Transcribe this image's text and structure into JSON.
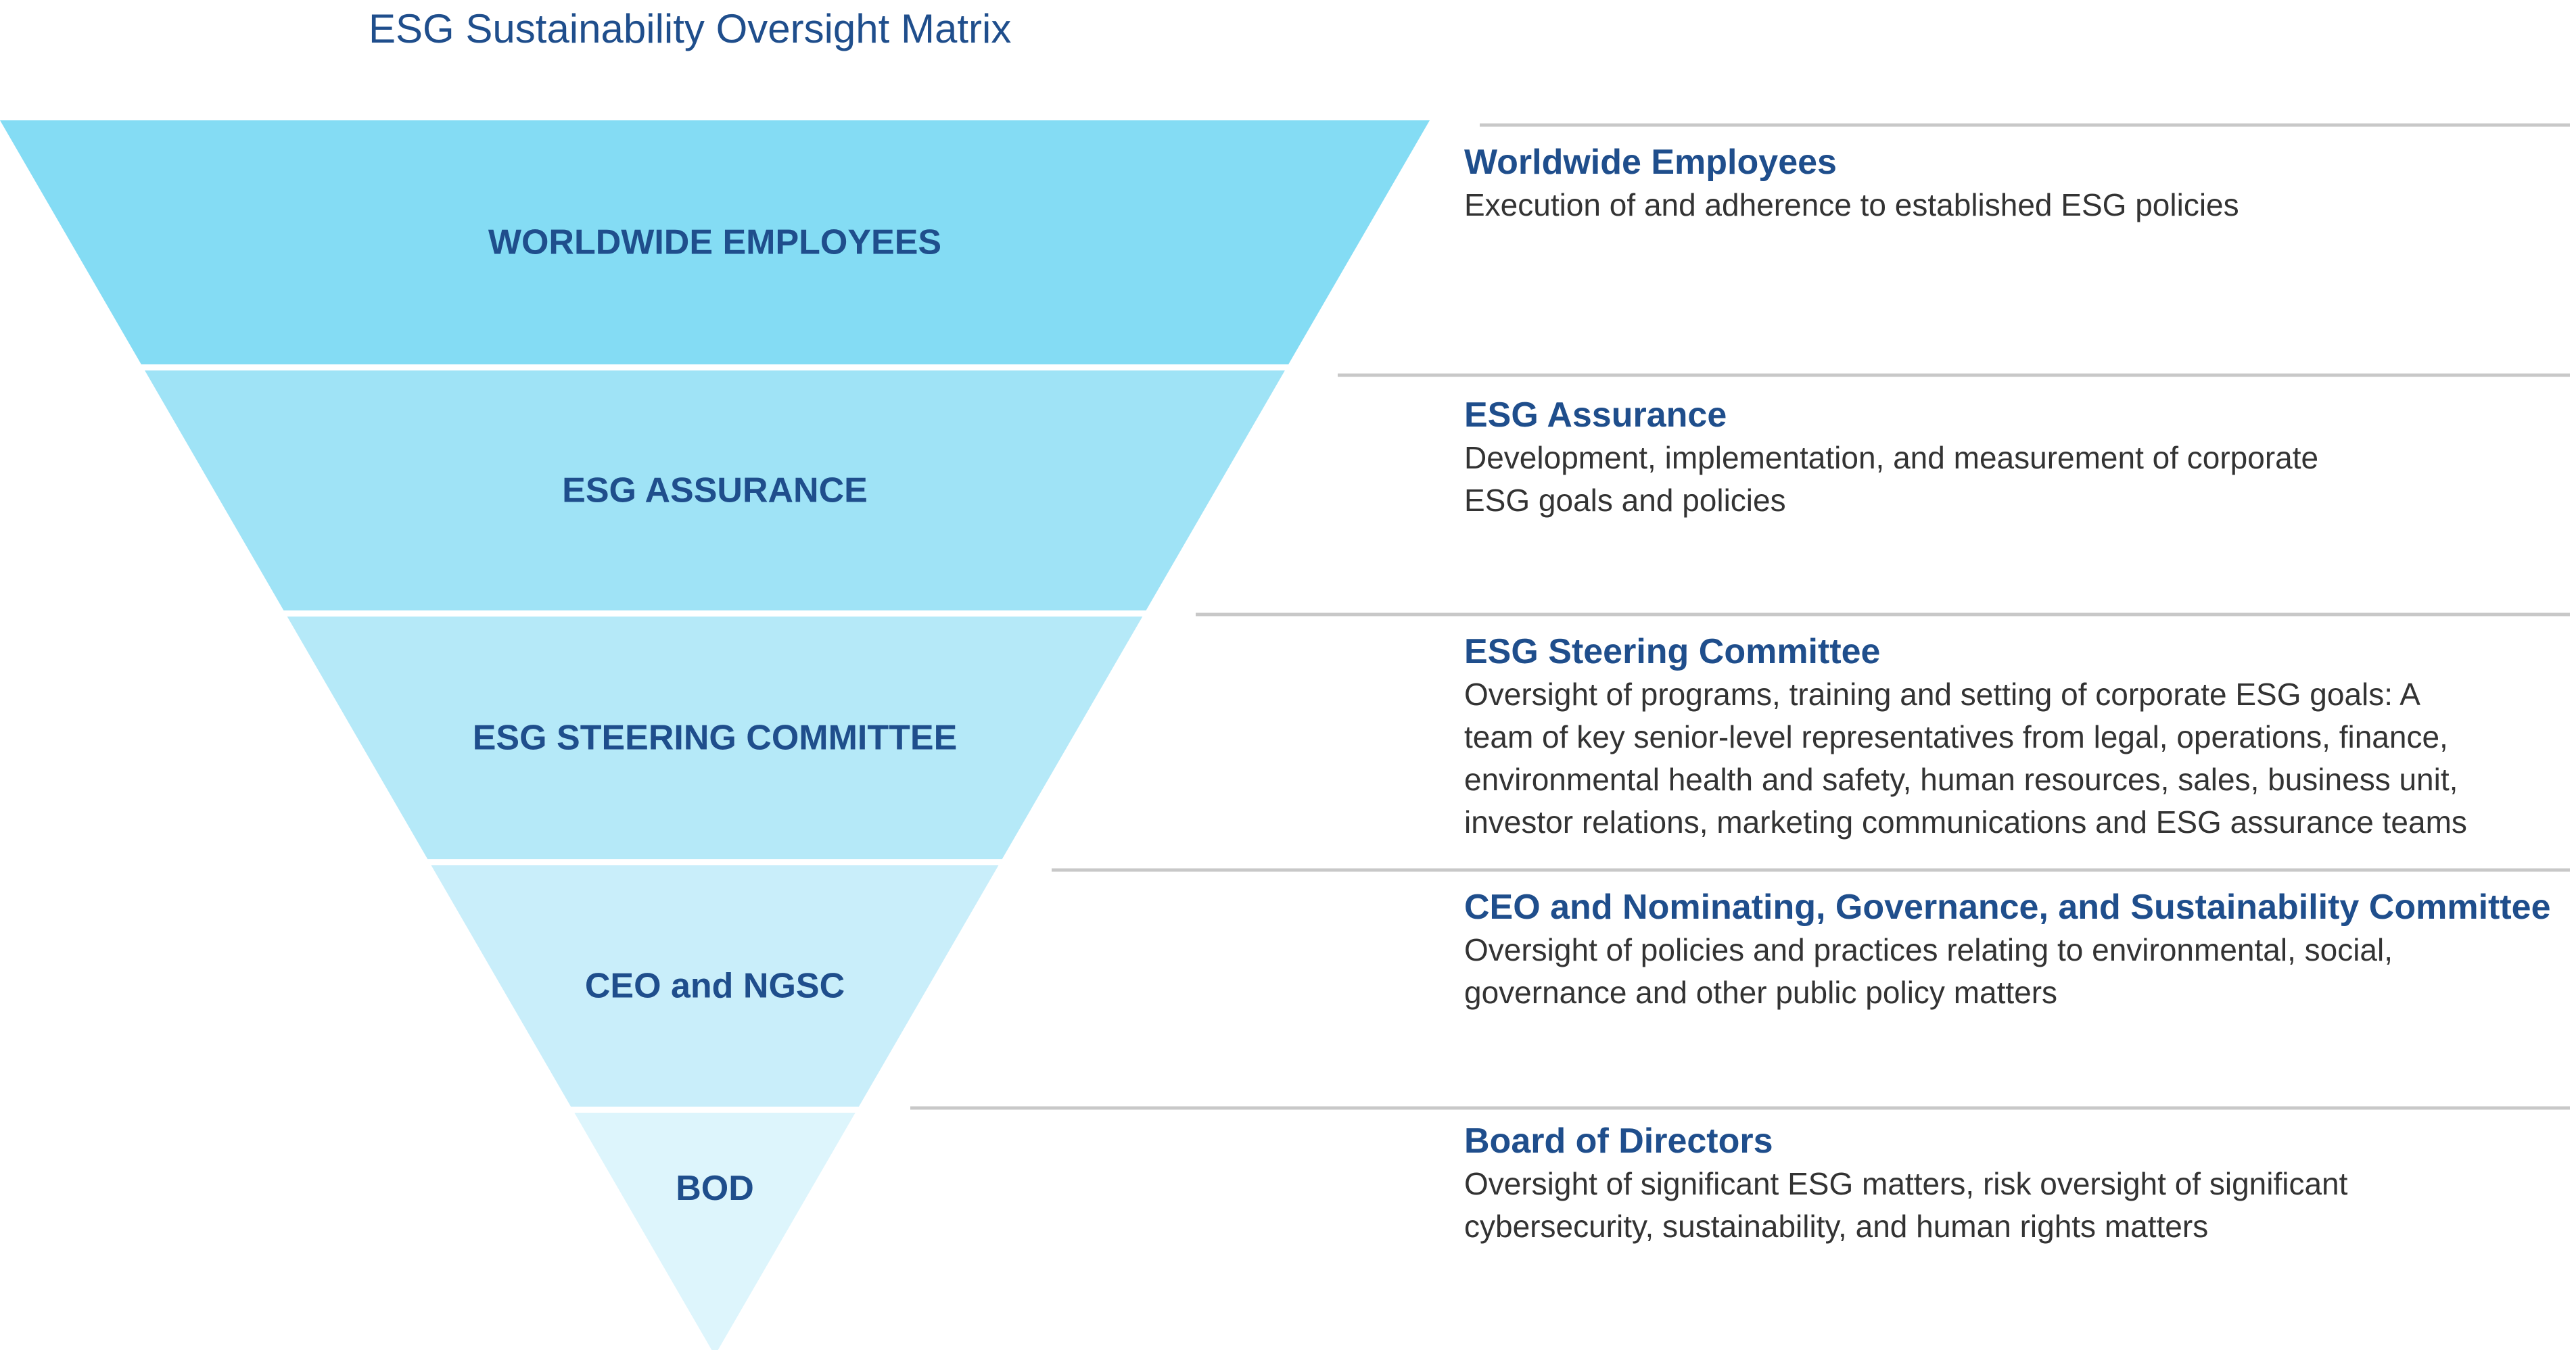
{
  "title": "ESG Sustainability Oversight Matrix",
  "colors": {
    "title": "#1f4e8c",
    "divider": "#c8c8c8",
    "body_text": "#333333",
    "tier_fills": [
      "#84dcf4",
      "#9fe3f6",
      "#b5e9f8",
      "#c9eefa",
      "#ddf5fc"
    ]
  },
  "tiers": [
    {
      "label": "WORLDWIDE EMPLOYEES",
      "heading": "Worldwide Employees",
      "description_lines": [
        "Execution of and adherence to established ESG policies"
      ]
    },
    {
      "label": "ESG ASSURANCE",
      "heading": "ESG Assurance",
      "description_lines": [
        "Development, implementation, and measurement of corporate",
        "ESG goals and policies"
      ]
    },
    {
      "label": "ESG STEERING COMMITTEE",
      "heading": "ESG Steering Committee",
      "description_lines": [
        "Oversight of programs, training and setting of corporate ESG goals: A",
        "team of key senior-level representatives from legal, operations, finance,",
        "environmental health and safety, human resources, sales, business unit,",
        "investor relations, marketing communications and ESG assurance teams"
      ]
    },
    {
      "label": "CEO and NGSC",
      "heading": "CEO and Nominating, Governance, and Sustainability Committee",
      "description_lines": [
        "Oversight of policies and practices relating to environmental, social,",
        "governance and other public policy matters"
      ]
    },
    {
      "label": "BOD",
      "heading": "Board of Directors",
      "description_lines": [
        "Oversight of significant ESG matters, risk oversight of significant",
        "cybersecurity, sustainability, and human rights matters"
      ]
    }
  ]
}
